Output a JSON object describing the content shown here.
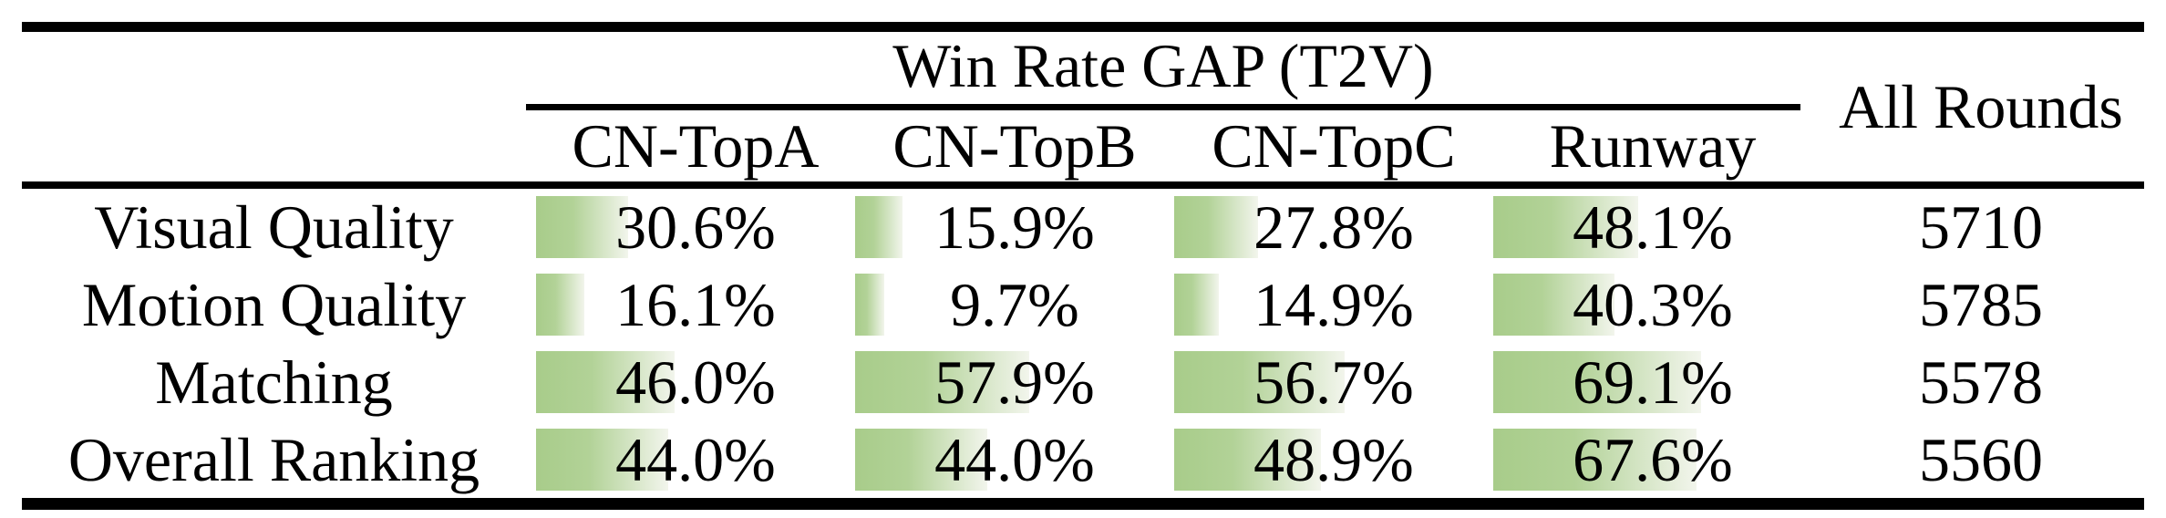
{
  "table": {
    "group_header": "Win Rate GAP (T2V)",
    "all_rounds_header": "All Rounds",
    "columns": [
      "CN-TopA",
      "CN-TopB",
      "CN-TopC",
      "Runway"
    ],
    "rows": [
      {
        "label": "Visual Quality",
        "cells": [
          {
            "value": 30.6,
            "text": "30.6%"
          },
          {
            "value": 15.9,
            "text": "15.9%"
          },
          {
            "value": 27.8,
            "text": "27.8%"
          },
          {
            "value": 48.1,
            "text": "48.1%"
          }
        ],
        "all_rounds": "5710"
      },
      {
        "label": "Motion Quality",
        "cells": [
          {
            "value": 16.1,
            "text": "16.1%"
          },
          {
            "value": 9.7,
            "text": "9.7%"
          },
          {
            "value": 14.9,
            "text": "14.9%"
          },
          {
            "value": 40.3,
            "text": "40.3%"
          }
        ],
        "all_rounds": "5785"
      },
      {
        "label": "Matching",
        "cells": [
          {
            "value": 46.0,
            "text": "46.0%"
          },
          {
            "value": 57.9,
            "text": "57.9%"
          },
          {
            "value": 56.7,
            "text": "56.7%"
          },
          {
            "value": 69.1,
            "text": "69.1%"
          }
        ],
        "all_rounds": "5578"
      },
      {
        "label": "Overall Ranking",
        "cells": [
          {
            "value": 44.0,
            "text": "44.0%"
          },
          {
            "value": 44.0,
            "text": "44.0%"
          },
          {
            "value": 48.9,
            "text": "48.9%"
          },
          {
            "value": 67.6,
            "text": "67.6%"
          }
        ],
        "all_rounds": "5560"
      }
    ],
    "colors": {
      "bar_green": "#a8cc8a",
      "bar_fade": "#f2f5ec",
      "rule": "#000000",
      "text": "#000000",
      "background": "#ffffff"
    }
  },
  "chart_data": {
    "type": "table",
    "title": "Win Rate GAP (T2V)",
    "columns": [
      "CN-TopA",
      "CN-TopB",
      "CN-TopC",
      "Runway",
      "All Rounds"
    ],
    "rows": [
      "Visual Quality",
      "Motion Quality",
      "Matching",
      "Overall Ranking"
    ],
    "win_rate_gap_percent": [
      [
        30.6,
        15.9,
        27.8,
        48.1
      ],
      [
        16.1,
        9.7,
        14.9,
        40.3
      ],
      [
        46.0,
        57.9,
        56.7,
        69.1
      ],
      [
        44.0,
        44.0,
        48.9,
        67.6
      ]
    ],
    "all_rounds": [
      5710,
      5785,
      5578,
      5560
    ],
    "bar_style": "horizontal green gradient data bars, width proportional to percent, 100% ~ full column width"
  }
}
